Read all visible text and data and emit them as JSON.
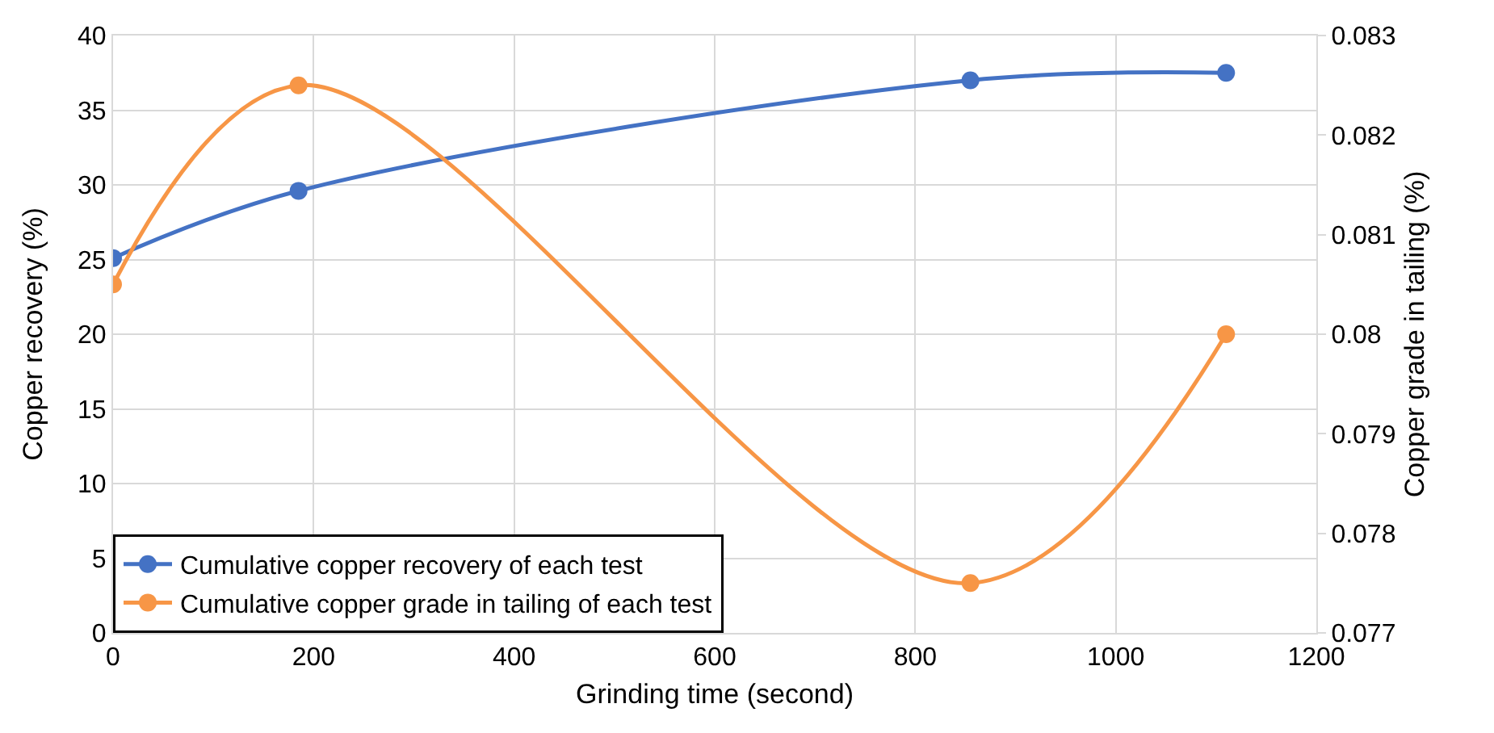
{
  "chart_data": {
    "type": "line",
    "xlabel": "Grinding time (second)",
    "ylabel": "Copper recovery (%)",
    "y2label": "Copper grade in tailing (%)",
    "x": [
      0,
      185,
      855,
      1110
    ],
    "series": [
      {
        "name": "Cumulative copper recovery of each test",
        "color": "#4472c4",
        "values": [
          25.1,
          29.6,
          37.0,
          37.5
        ]
      },
      {
        "name": "Cumulative copper grade in tailing of each test",
        "color": "#f79646",
        "axis": "y2",
        "values": [
          0.0805,
          0.0825,
          0.0775,
          0.08
        ]
      }
    ],
    "xlim": [
      0,
      1200
    ],
    "xticks": [
      0,
      200,
      400,
      600,
      800,
      1000,
      1200
    ],
    "ylim": [
      0,
      40
    ],
    "yticks": [
      0,
      5,
      10,
      15,
      20,
      25,
      30,
      35,
      40
    ],
    "y2lim": [
      0.077,
      0.083
    ],
    "y2ticks": [
      0.077,
      0.078,
      0.079,
      0.08,
      0.081,
      0.082,
      0.083
    ],
    "grid": true,
    "legend": "bottom left",
    "marker": "circle",
    "line_style": "solid"
  }
}
